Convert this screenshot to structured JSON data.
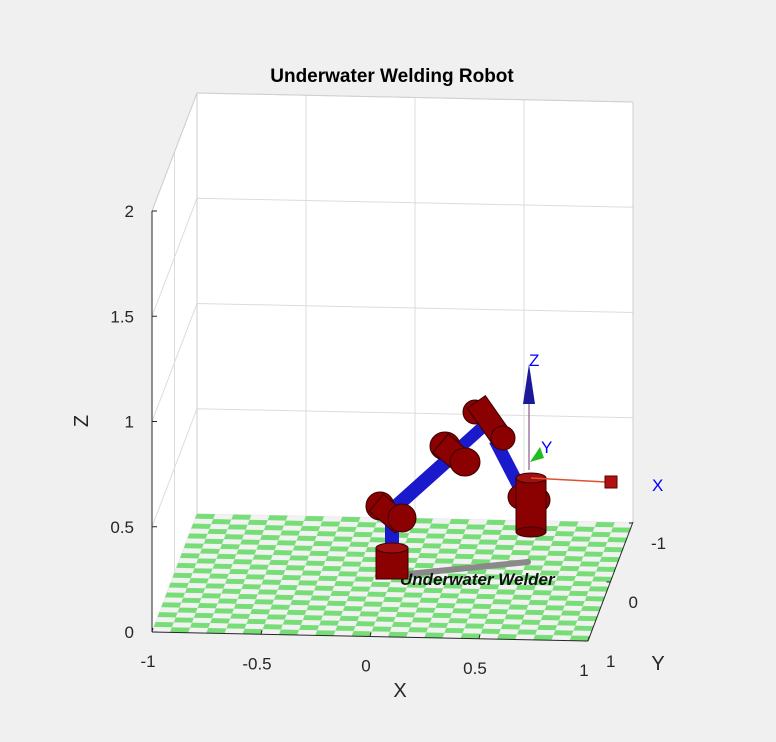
{
  "chart_data": {
    "type": "3d-plot",
    "title": "Underwater Welding Robot",
    "xlabel": "X",
    "ylabel": "Y",
    "zlabel": "Z",
    "xlim": [
      -1,
      1
    ],
    "ylim": [
      -1,
      1
    ],
    "zlim": [
      0,
      2
    ],
    "x_ticks": [
      "-1",
      "-0.5",
      "0",
      "0.5",
      "1"
    ],
    "y_ticks": [
      "-1",
      "0",
      "1"
    ],
    "z_ticks": [
      "0",
      "0.5",
      "1",
      "1.5",
      "2"
    ],
    "grid": true,
    "floor": {
      "pattern": "checkerboard",
      "colors": [
        "#77dd77",
        "#f2f2f2"
      ]
    },
    "robot": {
      "name": "Underwater Welder",
      "joint_color": "#8b0000",
      "link_color": "#1a1acc",
      "tool_color": "#808080"
    },
    "tool_frame": {
      "x_label": "X",
      "y_label": "Y",
      "z_label": "Z",
      "x_color": "#e05030",
      "y_color": "#22bb22",
      "z_color": "#1a1a99"
    },
    "axis_label_color": "#0000ff"
  }
}
